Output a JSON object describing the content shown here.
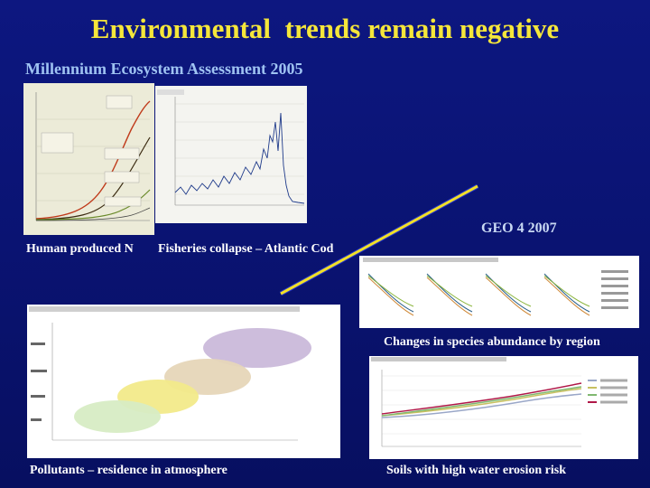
{
  "slide": {
    "title": "Environmental  trends remain negative",
    "subtitle": "Millennium Ecosystem Assessment 2005",
    "geo_label": "GEO 4 2007"
  },
  "captions": {
    "nitrogen": "Human produced N",
    "fisheries": "Fisheries collapse – Atlantic Cod",
    "species": "Changes in species abundance by region",
    "pollutants": "Pollutants – residence in atmosphere",
    "soils": "Soils with high water erosion risk"
  },
  "colors": {
    "title": "#f5e63a",
    "subtitle": "#9fc3f2",
    "background": "#0b1478",
    "connector_line": "#f2e027",
    "connector_blue": "#2233cc"
  }
}
